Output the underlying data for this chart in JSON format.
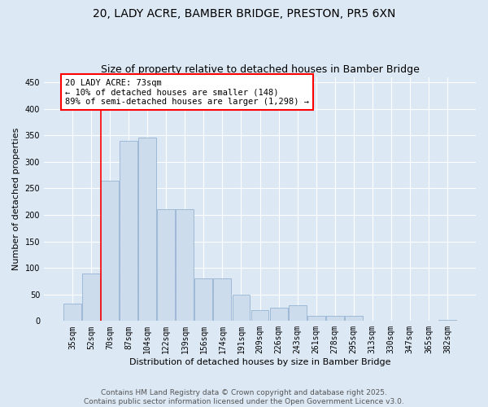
{
  "title_line1": "20, LADY ACRE, BAMBER BRIDGE, PRESTON, PR5 6XN",
  "title_line2": "Size of property relative to detached houses in Bamber Bridge",
  "xlabel": "Distribution of detached houses by size in Bamber Bridge",
  "ylabel": "Number of detached properties",
  "bar_color": "#ccdcec",
  "bar_edge_color": "#88aacc",
  "background_color": "#dce8f4",
  "grid_color": "#ffffff",
  "categories": [
    "35sqm",
    "52sqm",
    "70sqm",
    "87sqm",
    "104sqm",
    "122sqm",
    "139sqm",
    "156sqm",
    "174sqm",
    "191sqm",
    "209sqm",
    "226sqm",
    "243sqm",
    "261sqm",
    "278sqm",
    "295sqm",
    "313sqm",
    "330sqm",
    "347sqm",
    "365sqm",
    "382sqm"
  ],
  "values": [
    33,
    90,
    265,
    340,
    345,
    210,
    210,
    80,
    80,
    50,
    20,
    25,
    30,
    10,
    10,
    10,
    0,
    0,
    0,
    0,
    2
  ],
  "ylim": [
    0,
    460
  ],
  "yticks": [
    0,
    50,
    100,
    150,
    200,
    250,
    300,
    350,
    400,
    450
  ],
  "property_bin_index": 2,
  "annotation_title": "20 LADY ACRE: 73sqm",
  "annotation_line1": "← 10% of detached houses are smaller (148)",
  "annotation_line2": "89% of semi-detached houses are larger (1,298) →",
  "footer_line1": "Contains HM Land Registry data © Crown copyright and database right 2025.",
  "footer_line2": "Contains public sector information licensed under the Open Government Licence v3.0.",
  "title_fontsize": 10,
  "subtitle_fontsize": 9,
  "axis_label_fontsize": 8,
  "tick_fontsize": 7,
  "annotation_fontsize": 7.5,
  "footer_fontsize": 6.5
}
